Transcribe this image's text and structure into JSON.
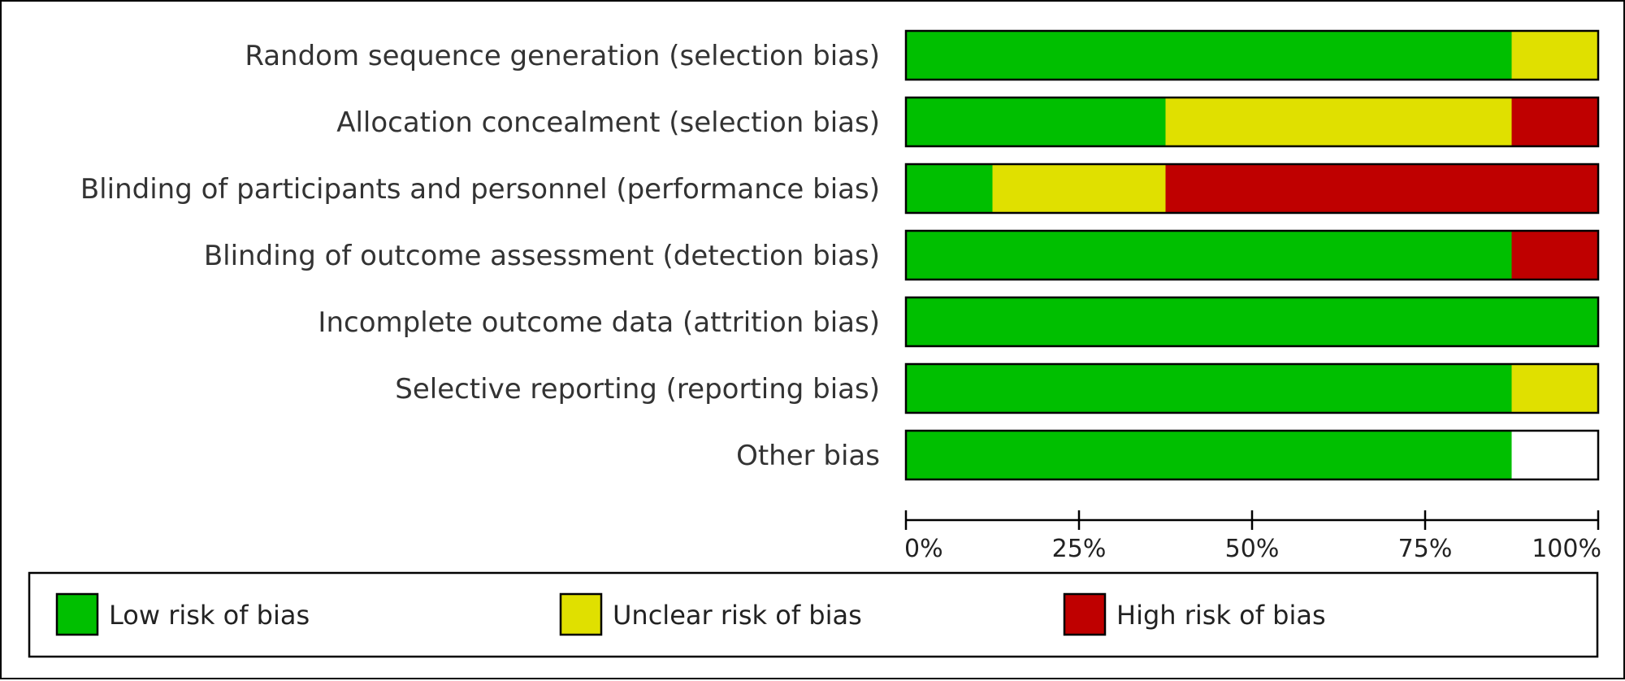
{
  "chart_data": {
    "type": "bar",
    "orientation": "horizontal",
    "stacked": true,
    "percent_stacked": true,
    "categories": [
      "Random sequence generation (selection bias)",
      "Allocation concealment (selection bias)",
      "Blinding of participants and personnel (performance bias)",
      "Blinding of outcome assessment (detection bias)",
      "Incomplete outcome data (attrition bias)",
      "Selective reporting (reporting bias)",
      "Other bias"
    ],
    "series": [
      {
        "name": "Low risk of bias",
        "color": "#00bf00",
        "values": [
          87.5,
          37.5,
          12.5,
          87.5,
          100,
          87.5,
          87.5
        ]
      },
      {
        "name": "Unclear risk of bias",
        "color": "#e0e000",
        "values": [
          12.5,
          50,
          25,
          0,
          0,
          12.5,
          0
        ]
      },
      {
        "name": "High risk of bias",
        "color": "#bf0000",
        "values": [
          0,
          12.5,
          62.5,
          12.5,
          0,
          0,
          0
        ]
      }
    ],
    "xlim": [
      0,
      100
    ],
    "x_ticks": [
      0,
      25,
      50,
      75,
      100
    ],
    "x_tick_labels": [
      "0%",
      "25%",
      "50%",
      "75%",
      "100%"
    ],
    "xlabel": "",
    "ylabel": "",
    "title": "",
    "grid": false,
    "legend_position": "bottom"
  }
}
